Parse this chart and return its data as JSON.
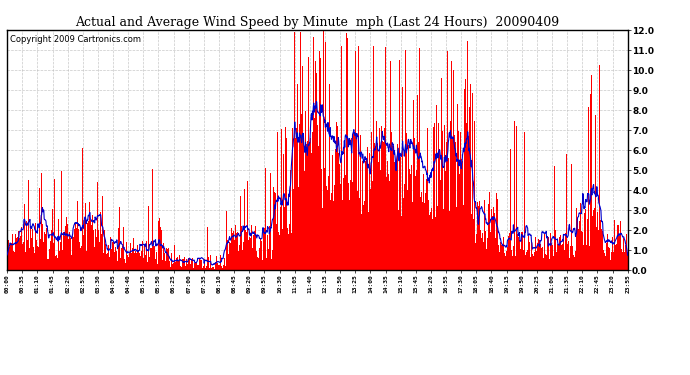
{
  "title": "Actual and Average Wind Speed by Minute  mph (Last 24 Hours)  20090409",
  "copyright": "Copyright 2009 Cartronics.com",
  "ylim": [
    0.0,
    12.0
  ],
  "yticks": [
    0.0,
    1.0,
    2.0,
    3.0,
    4.0,
    5.0,
    6.0,
    7.0,
    8.0,
    9.0,
    10.0,
    11.0,
    12.0
  ],
  "bar_color": "#ff0000",
  "line_color": "#0000cc",
  "bg_color": "#ffffff",
  "grid_color": "#bbbbbb",
  "title_fontsize": 9,
  "copyright_fontsize": 6,
  "tick_label_fontsize": 4.5,
  "ytick_fontsize": 6.5,
  "xtick_labels": [
    "00:00",
    "00:35",
    "01:10",
    "01:45",
    "02:20",
    "02:55",
    "03:30",
    "04:05",
    "04:40",
    "05:15",
    "05:50",
    "06:25",
    "07:00",
    "07:35",
    "08:10",
    "08:45",
    "09:20",
    "09:55",
    "10:30",
    "11:05",
    "11:40",
    "12:15",
    "12:50",
    "13:25",
    "14:00",
    "14:35",
    "15:10",
    "15:45",
    "16:20",
    "16:55",
    "17:30",
    "18:05",
    "18:40",
    "19:15",
    "19:50",
    "20:25",
    "21:00",
    "21:35",
    "22:10",
    "22:45",
    "23:20",
    "23:55"
  ],
  "n_minutes": 1440,
  "avg_window": 15
}
